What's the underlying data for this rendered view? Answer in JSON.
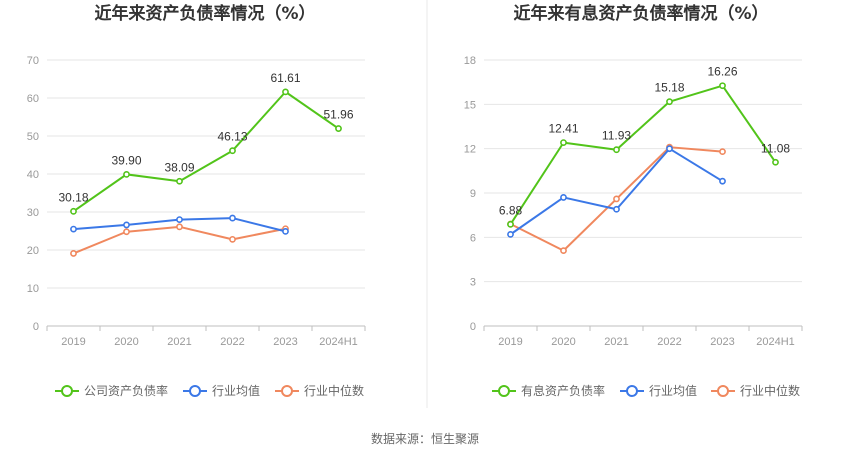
{
  "source": "数据来源：恒生聚源",
  "chart_data": [
    {
      "type": "line",
      "title": "近年来资产负债率情况（%）",
      "categories": [
        "2019",
        "2020",
        "2021",
        "2022",
        "2023",
        "2024H1"
      ],
      "ylim": [
        0,
        70
      ],
      "yticks": [
        0,
        10,
        20,
        30,
        40,
        50,
        60,
        70
      ],
      "grid": true,
      "legend_position": "bottom",
      "series": [
        {
          "name": "公司资产负债率",
          "color": "#52c41a",
          "labels": true,
          "values": [
            30.18,
            39.9,
            38.09,
            46.13,
            61.61,
            51.96
          ],
          "value_labels": [
            "30.18",
            "39.90",
            "38.09",
            "46.13",
            "61.61",
            "51.96"
          ]
        },
        {
          "name": "行业均值",
          "color": "#3b78e7",
          "labels": false,
          "values": [
            25.5,
            26.6,
            28.0,
            28.4,
            24.9,
            null
          ]
        },
        {
          "name": "行业中位数",
          "color": "#f0885e",
          "labels": false,
          "values": [
            19.1,
            24.8,
            26.1,
            22.8,
            25.6,
            null
          ]
        }
      ]
    },
    {
      "type": "line",
      "title": "近年来有息资产负债率情况（%）",
      "categories": [
        "2019",
        "2020",
        "2021",
        "2022",
        "2023",
        "2024H1"
      ],
      "ylim": [
        0,
        18
      ],
      "yticks": [
        0,
        3,
        6,
        9,
        12,
        15,
        18
      ],
      "grid": true,
      "legend_position": "bottom",
      "series": [
        {
          "name": "有息资产负债率",
          "color": "#52c41a",
          "labels": true,
          "values": [
            6.88,
            12.41,
            11.93,
            15.18,
            16.26,
            11.08
          ],
          "value_labels": [
            "6.88",
            "12.41",
            "11.93",
            "15.18",
            "16.26",
            "11.08"
          ]
        },
        {
          "name": "行业均值",
          "color": "#3b78e7",
          "labels": false,
          "values": [
            6.2,
            8.7,
            7.9,
            12.0,
            9.8,
            null
          ]
        },
        {
          "name": "行业中位数",
          "color": "#f0885e",
          "labels": false,
          "values": [
            6.9,
            5.1,
            8.6,
            12.1,
            11.8,
            null
          ]
        }
      ]
    }
  ]
}
